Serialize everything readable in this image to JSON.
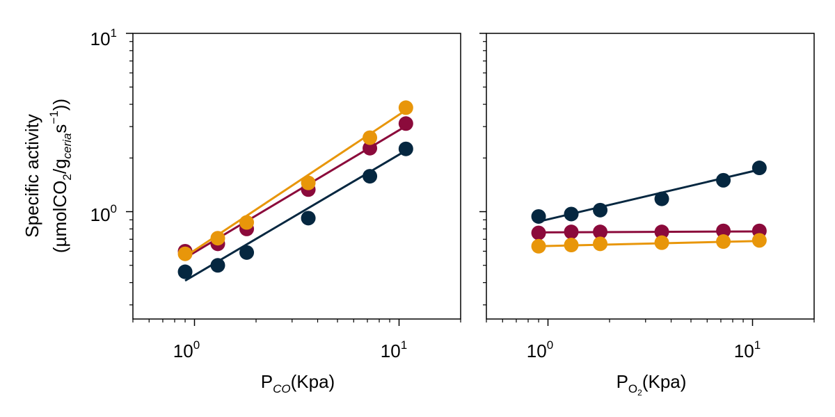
{
  "chart_data": [
    {
      "type": "scatter",
      "xscale": "log",
      "yscale": "log",
      "xlim": [
        0.5,
        20
      ],
      "ylim": [
        0.25,
        10
      ],
      "ylabel_line1": "Specific activity",
      "ylabel_line2": {
        "pre": "(µmolCO",
        "sub1": "2",
        "mid": "/g",
        "sub2": "ceria",
        "post1": "s",
        "sup": "−1",
        "post2": "))"
      },
      "xlabel": {
        "main": "P",
        "sub": "CO",
        "post": "(Kpa)"
      },
      "xtick_labels": [
        {
          "base": "10",
          "exp": "0"
        },
        {
          "base": "10",
          "exp": "1"
        }
      ],
      "ytick_labels": [
        {
          "base": "10",
          "exp": "0"
        },
        {
          "base": "10",
          "exp": "1"
        }
      ],
      "series": [
        {
          "color": "#8b0a3b",
          "x": [
            0.9,
            1.3,
            1.8,
            3.6,
            7.2,
            10.8
          ],
          "y": [
            0.6,
            0.66,
            0.8,
            1.33,
            2.27,
            3.12
          ],
          "fit": {
            "x": [
              0.9,
              10.8
            ],
            "y": [
              0.55,
              3.02
            ]
          }
        },
        {
          "color": "#e8960a",
          "x": [
            0.9,
            1.3,
            1.8,
            3.6,
            7.2,
            10.8
          ],
          "y": [
            0.58,
            0.71,
            0.87,
            1.45,
            2.6,
            3.83
          ],
          "fit": {
            "x": [
              0.9,
              10.8
            ],
            "y": [
              0.56,
              3.71
            ]
          }
        },
        {
          "color": "#052740",
          "x": [
            0.9,
            1.3,
            1.8,
            3.6,
            7.2,
            10.8
          ],
          "y": [
            0.46,
            0.5,
            0.59,
            0.92,
            1.58,
            2.25
          ],
          "fit": {
            "x": [
              0.9,
              10.8
            ],
            "y": [
              0.41,
              2.2
            ]
          }
        }
      ]
    },
    {
      "type": "scatter",
      "xscale": "log",
      "yscale": "log",
      "xlim": [
        0.5,
        20
      ],
      "ylim": [
        0.25,
        10
      ],
      "xlabel": {
        "main": "P",
        "sub": "O",
        "subsub": "2",
        "post": "(Kpa)"
      },
      "xtick_labels": [
        {
          "base": "10",
          "exp": "0"
        },
        {
          "base": "10",
          "exp": "1"
        }
      ],
      "series": [
        {
          "color": "#052740",
          "x": [
            0.9,
            1.3,
            1.8,
            3.6,
            7.2,
            10.8
          ],
          "y": [
            0.94,
            0.97,
            1.02,
            1.18,
            1.5,
            1.76
          ],
          "fit": {
            "x": [
              0.9,
              10.8
            ],
            "y": [
              0.88,
              1.72
            ]
          }
        },
        {
          "color": "#8b0a3b",
          "x": [
            0.9,
            1.3,
            1.8,
            3.6,
            7.2,
            10.8
          ],
          "y": [
            0.76,
            0.77,
            0.77,
            0.77,
            0.78,
            0.78
          ],
          "fit": {
            "x": [
              0.9,
              10.8
            ],
            "y": [
              0.765,
              0.775
            ]
          }
        },
        {
          "color": "#e8960a",
          "x": [
            0.9,
            1.3,
            1.8,
            3.6,
            7.2,
            10.8
          ],
          "y": [
            0.64,
            0.65,
            0.66,
            0.67,
            0.68,
            0.69
          ],
          "fit": {
            "x": [
              0.9,
              10.8
            ],
            "y": [
              0.64,
              0.685
            ]
          }
        }
      ]
    }
  ]
}
